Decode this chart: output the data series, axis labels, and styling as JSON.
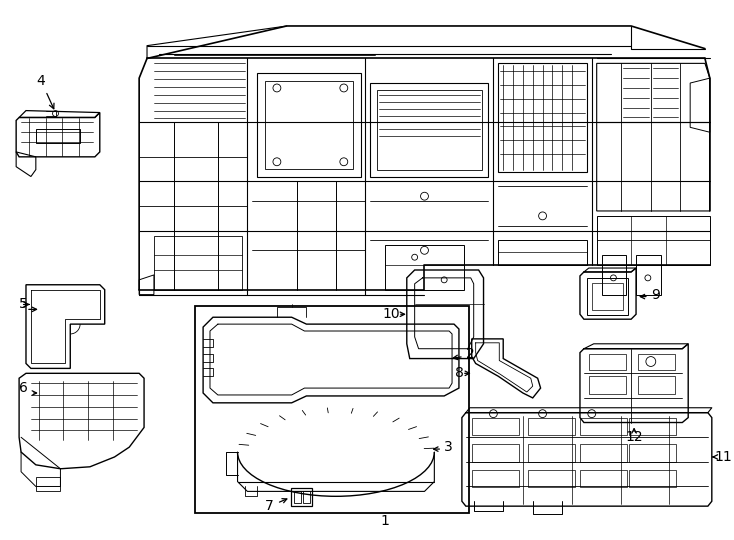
{
  "background_color": "#ffffff",
  "line_color": "#000000",
  "fig_width": 7.34,
  "fig_height": 5.4,
  "dpi": 100,
  "gray": "#888888",
  "light_gray": "#cccccc"
}
